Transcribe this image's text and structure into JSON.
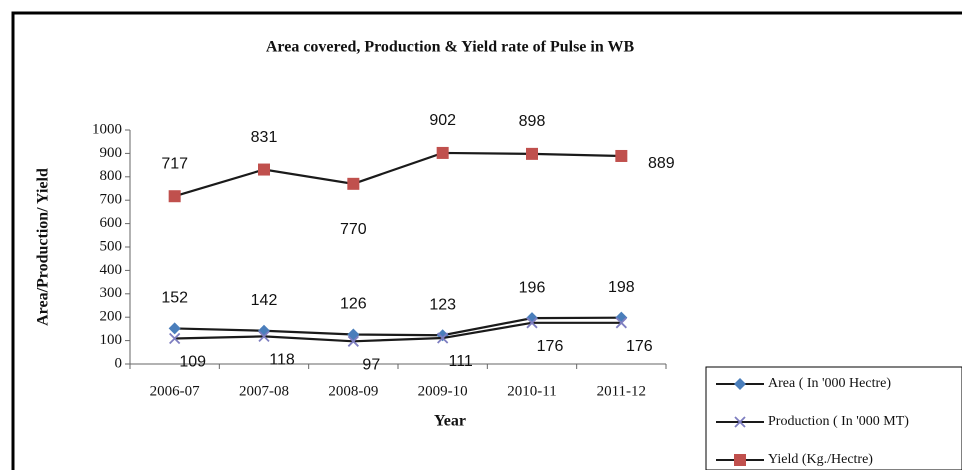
{
  "chart_data": {
    "type": "line",
    "title": "Area covered, Production & Yield rate of Pulse in WB",
    "xlabel": "Year",
    "ylabel": "Area/Production/ Yield",
    "categories": [
      "2006-07",
      "2007-08",
      "2008-09",
      "2009-10",
      "2010-11",
      "2011-12"
    ],
    "series": [
      {
        "name": "Area ( In '000 Hectre)",
        "color": "#4a7ebb",
        "marker": "diamond",
        "values": [
          152,
          142,
          126,
          123,
          196,
          198
        ]
      },
      {
        "name": "Production ( In '000 MT)",
        "color": "#7e7ec0",
        "marker": "x",
        "values": [
          109,
          118,
          97,
          111,
          176,
          176
        ]
      },
      {
        "name": "Yield (Kg./Hectre)",
        "color": "#c0504d",
        "marker": "square",
        "values": [
          717,
          831,
          770,
          902,
          898,
          889
        ]
      }
    ],
    "ylim": [
      0,
      1000
    ],
    "yticks": [
      0,
      100,
      200,
      300,
      400,
      500,
      600,
      700,
      800,
      900,
      1000
    ],
    "legend": "bottom-right"
  }
}
